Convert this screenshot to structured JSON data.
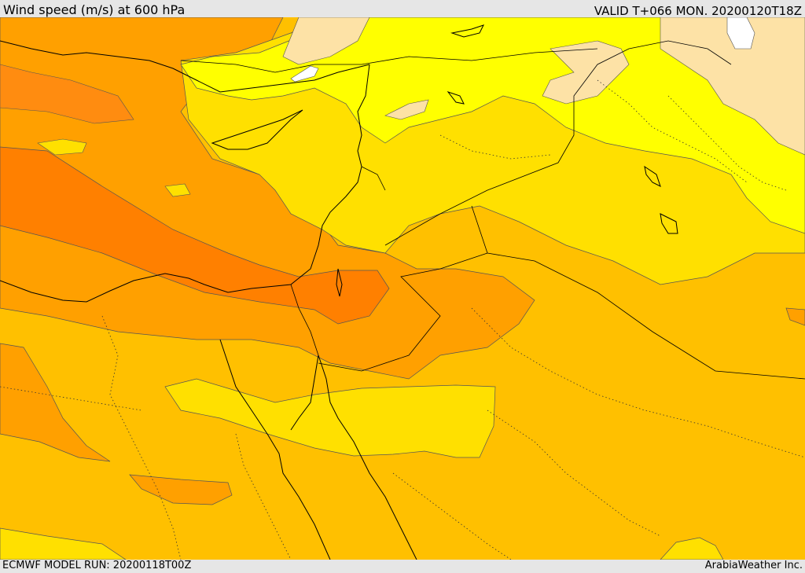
{
  "header": {
    "title": "Wind speed (m/s) at 600 hPa",
    "valid": "VALID T+066 MON. 20200120T18Z"
  },
  "footer": {
    "model_run": "ECMWF MODEL RUN: 20200118T00Z",
    "credit": "ArabiaWeather Inc."
  },
  "palette": {
    "calm": "#ffffff",
    "light_tan": "#fde2a6",
    "yellow": "#ffff00",
    "gold": "#ffe000",
    "amber": "#ffc000",
    "orange": "#ffa000",
    "dark_orange": "#ff8000",
    "contour": "#555555",
    "coast": "#000000"
  }
}
